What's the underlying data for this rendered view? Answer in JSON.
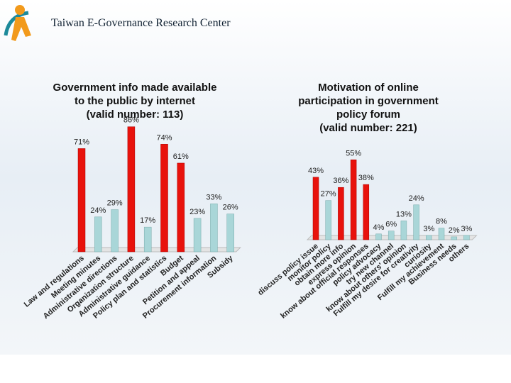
{
  "header": {
    "title": "Taiwan E-Governance Research Center"
  },
  "chart_data": [
    {
      "type": "bar",
      "title": [
        "Government info made available",
        "to the public by internet",
        "(valid number: 113)"
      ],
      "categories": [
        "Law and regulations",
        "Meeting minutes",
        "Administrative directions",
        "Organization structure",
        "Administrative guidance",
        "Policy plan and statistics",
        "Budget",
        "Petition and appeal",
        "Procurement information",
        "Subsidy"
      ],
      "values": [
        71,
        24,
        29,
        86,
        17,
        74,
        61,
        23,
        33,
        26
      ],
      "value_labels": [
        "71%",
        "24%",
        "29%",
        "86%",
        "17%",
        "74%",
        "61%",
        "23%",
        "33%",
        "26%"
      ],
      "colors": [
        "#e8120c",
        "#a9d6d8",
        "#a9d6d8",
        "#e8120c",
        "#a9d6d8",
        "#e8120c",
        "#e8120c",
        "#a9d6d8",
        "#a9d6d8",
        "#a9d6d8"
      ]
    },
    {
      "type": "bar",
      "title": [
        "Motivation of online",
        "participation in government",
        "policy forum",
        "(valid number: 221)"
      ],
      "categories": [
        "discuss policy issue",
        "monitor policy",
        "obtain more info",
        "express opinion",
        "know about official responses",
        "policy advocacy",
        "try new channel",
        "know about others' opinion",
        "Fulfill my desire for creativity",
        "curiosity",
        "Fulfill my achievement",
        "Business needs",
        "others"
      ],
      "values": [
        43,
        27,
        36,
        55,
        38,
        4,
        6,
        13,
        24,
        3,
        8,
        2,
        3
      ],
      "value_labels": [
        "43%",
        "27%",
        "36%",
        "55%",
        "38%",
        "4%",
        "6%",
        "13%",
        "24%",
        "3%",
        "8%",
        "2%",
        "3%"
      ],
      "colors": [
        "#e8120c",
        "#a9d6d8",
        "#e8120c",
        "#e8120c",
        "#e8120c",
        "#a9d6d8",
        "#a9d6d8",
        "#a9d6d8",
        "#a9d6d8",
        "#a9d6d8",
        "#a9d6d8",
        "#a9d6d8",
        "#a9d6d8"
      ]
    }
  ]
}
